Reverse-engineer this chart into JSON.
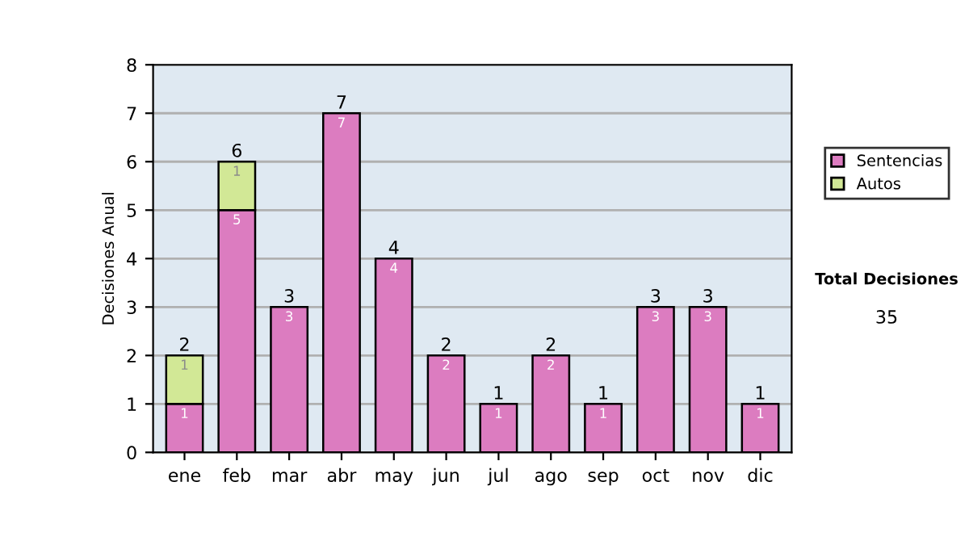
{
  "chart_data": {
    "type": "bar",
    "stacked": true,
    "ylabel": "Decisiones Anual",
    "categories": [
      "ene",
      "feb",
      "mar",
      "abr",
      "may",
      "jun",
      "jul",
      "ago",
      "sep",
      "oct",
      "nov",
      "dic"
    ],
    "series": [
      {
        "name": "Sentencias",
        "color": "#dc7cc0",
        "values": [
          1,
          5,
          3,
          7,
          4,
          2,
          1,
          2,
          1,
          3,
          3,
          1
        ]
      },
      {
        "name": "Autos",
        "color": "#d2e896",
        "values": [
          1,
          1,
          null,
          null,
          null,
          null,
          null,
          null,
          null,
          null,
          null,
          null
        ]
      }
    ],
    "totals": [
      "2",
      "6",
      "3",
      "7",
      "4",
      "2",
      "1",
      "2",
      "1",
      "3",
      "3",
      "1"
    ],
    "data_labels": true,
    "ylim": [
      0,
      8
    ],
    "yticks": [
      0,
      1,
      2,
      3,
      4,
      5,
      6,
      7,
      8
    ],
    "grid": "y",
    "legend": "right",
    "annotations": [
      "Total Decisiones",
      "35"
    ]
  }
}
